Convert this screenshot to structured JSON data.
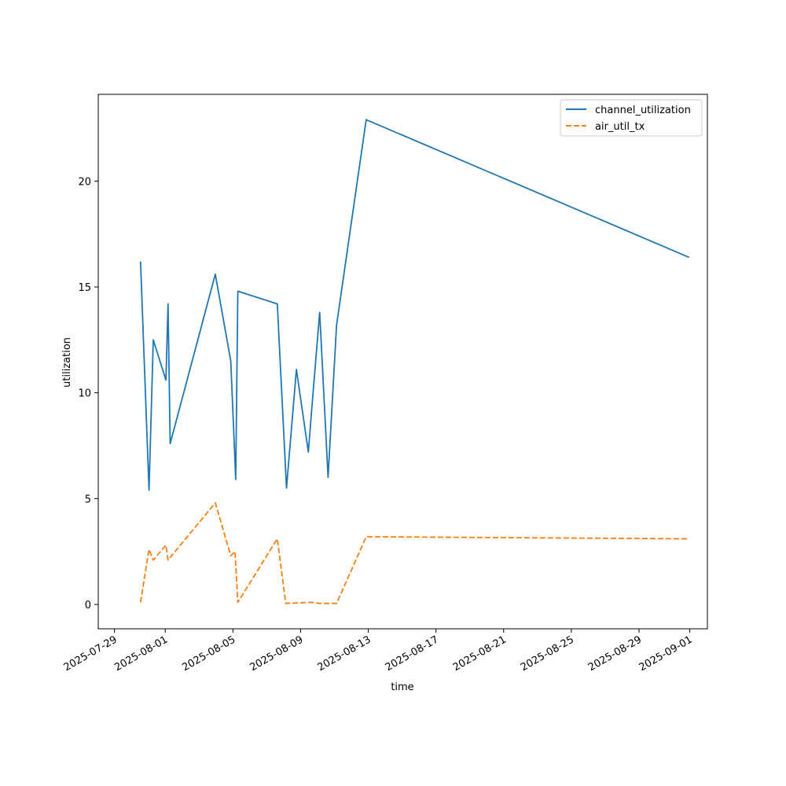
{
  "chart_data": {
    "type": "line",
    "xlabel": "time",
    "ylabel": "utilization",
    "xlim": [
      "2025-07-28T01:00",
      "2025-09-02T01:00"
    ],
    "ylim": [
      -1.15,
      24.1
    ],
    "x_ticks": [
      "2025-07-29",
      "2025-08-01",
      "2025-08-05",
      "2025-08-09",
      "2025-08-13",
      "2025-08-17",
      "2025-08-21",
      "2025-08-25",
      "2025-08-29",
      "2025-09-01"
    ],
    "y_ticks": [
      0,
      5,
      10,
      15,
      20
    ],
    "legend": {
      "position": "top-right",
      "entries": [
        "channel_utilization",
        "air_util_tx"
      ]
    },
    "grid": false,
    "series": [
      {
        "name": "channel_utilization",
        "color": "#1f77b4",
        "dash": "solid",
        "points": [
          [
            "2025-07-30T13:00",
            16.2
          ],
          [
            "2025-07-31T01:00",
            5.4
          ],
          [
            "2025-07-31T07:00",
            12.5
          ],
          [
            "2025-08-01T01:00",
            10.6
          ],
          [
            "2025-08-01T04:00",
            14.2
          ],
          [
            "2025-08-01T07:00",
            7.6
          ],
          [
            "2025-08-03T23:00",
            15.6
          ],
          [
            "2025-08-04T21:00",
            11.5
          ],
          [
            "2025-08-05T04:00",
            5.9
          ],
          [
            "2025-08-05T07:00",
            14.8
          ],
          [
            "2025-08-07T15:00",
            14.2
          ],
          [
            "2025-08-08T04:00",
            5.5
          ],
          [
            "2025-08-08T18:00",
            11.1
          ],
          [
            "2025-08-09T11:00",
            7.2
          ],
          [
            "2025-08-09T15:00",
            8.9
          ],
          [
            "2025-08-10T03:00",
            13.8
          ],
          [
            "2025-08-10T15:00",
            6.0
          ],
          [
            "2025-08-11T03:00",
            13.2
          ],
          [
            "2025-08-12T21:00",
            22.9
          ],
          [
            "2025-08-31T23:00",
            16.4
          ]
        ]
      },
      {
        "name": "air_util_tx",
        "color": "#ff7f0e",
        "dash": "dashed",
        "points": [
          [
            "2025-07-30T13:00",
            0.1
          ],
          [
            "2025-07-31T01:00",
            2.6
          ],
          [
            "2025-07-31T07:00",
            2.1
          ],
          [
            "2025-08-01T01:00",
            2.8
          ],
          [
            "2025-08-01T04:00",
            2.1
          ],
          [
            "2025-08-03T23:00",
            4.8
          ],
          [
            "2025-08-04T21:00",
            2.3
          ],
          [
            "2025-08-05T03:00",
            2.5
          ],
          [
            "2025-08-05T07:00",
            0.1
          ],
          [
            "2025-08-07T15:00",
            3.1
          ],
          [
            "2025-08-08T03:00",
            0.05
          ],
          [
            "2025-08-09T15:00",
            0.1
          ],
          [
            "2025-08-10T03:00",
            0.05
          ],
          [
            "2025-08-10T15:00",
            0.05
          ],
          [
            "2025-08-11T03:00",
            0.05
          ],
          [
            "2025-08-12T21:00",
            3.2
          ],
          [
            "2025-08-31T23:00",
            3.1
          ]
        ]
      }
    ]
  }
}
